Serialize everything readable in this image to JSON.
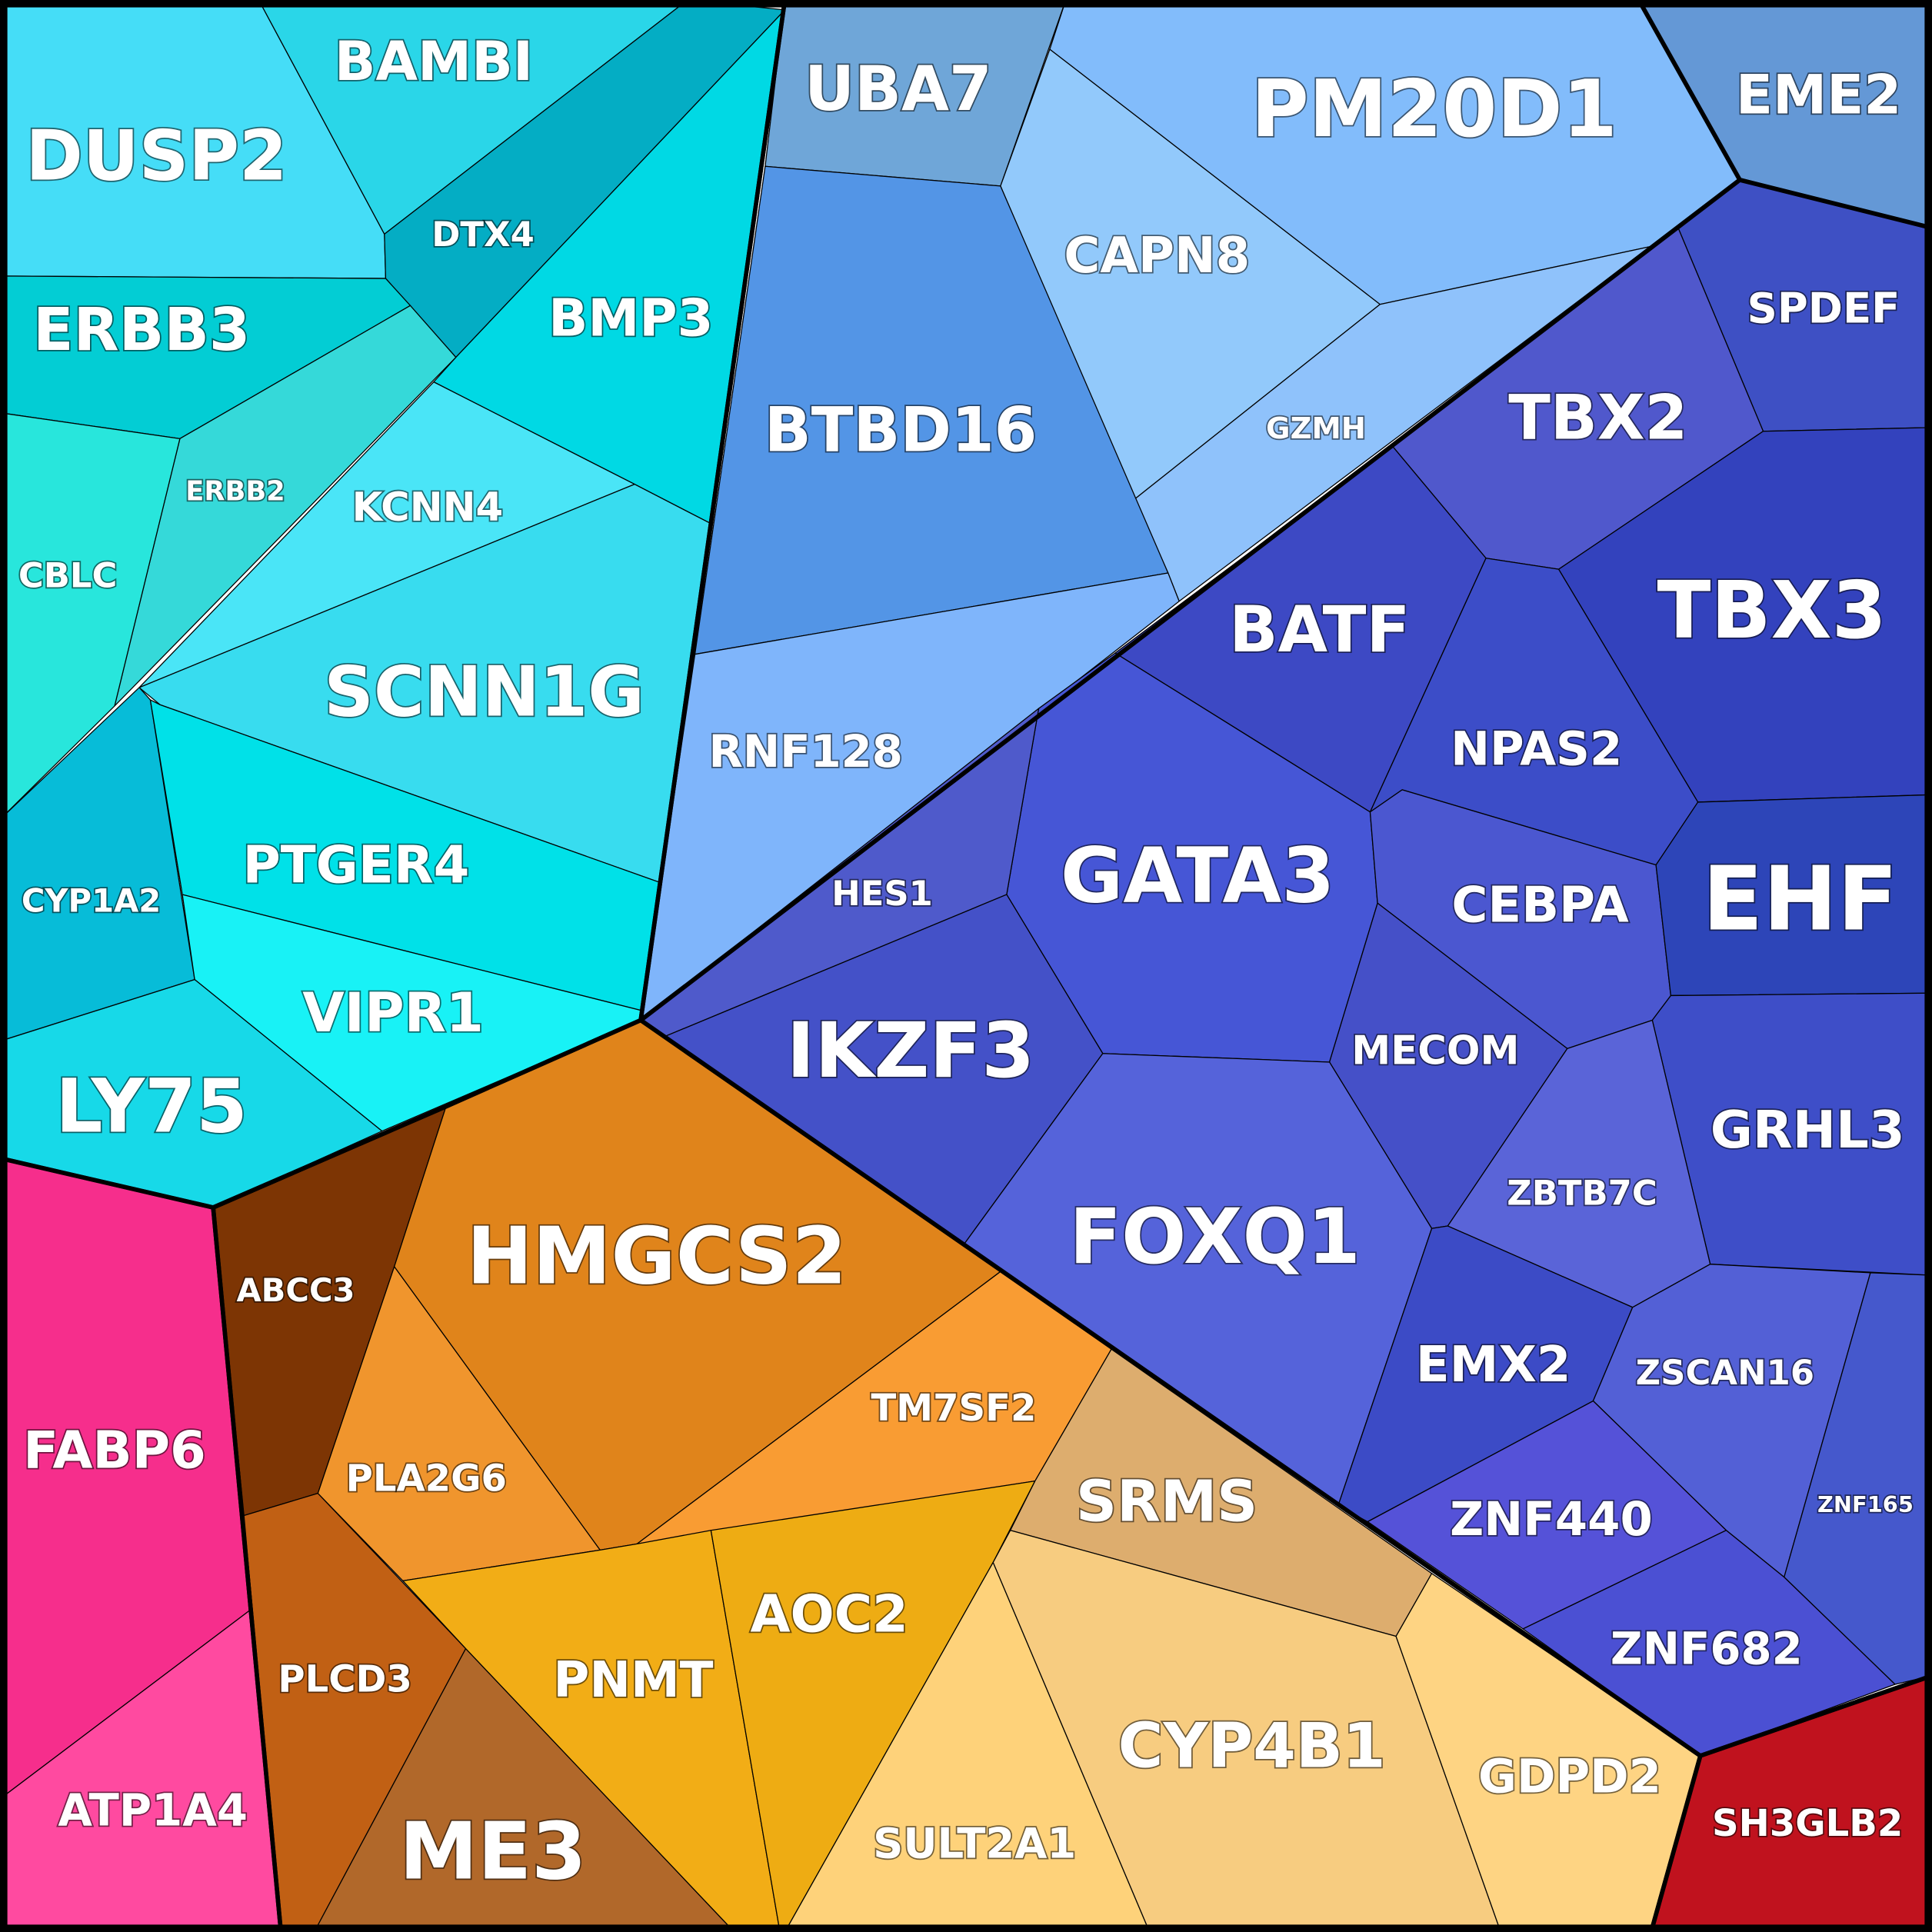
{
  "cells": [
    {
      "label": "DUSP2"
    },
    {
      "label": "BAMBI"
    },
    {
      "label": "DTX4"
    },
    {
      "label": "BMP3"
    },
    {
      "label": "ERBB3"
    },
    {
      "label": "ERBB2"
    },
    {
      "label": "CBLC"
    },
    {
      "label": "KCNN4"
    },
    {
      "label": "SCNN1G"
    },
    {
      "label": "CYP1A2"
    },
    {
      "label": "PTGER4"
    },
    {
      "label": "VIPR1"
    },
    {
      "label": "LY75"
    },
    {
      "label": "UBA7"
    },
    {
      "label": "PM20D1"
    },
    {
      "label": "CAPN8"
    },
    {
      "label": "GZMH"
    },
    {
      "label": "BTBD16"
    },
    {
      "label": "RNF128"
    },
    {
      "label": "EME2"
    },
    {
      "label": "SPDEF"
    },
    {
      "label": "TBX2"
    },
    {
      "label": "TBX3"
    },
    {
      "label": "BATF"
    },
    {
      "label": "NPAS2"
    },
    {
      "label": "GATA3"
    },
    {
      "label": "HES1"
    },
    {
      "label": "CEBPA"
    },
    {
      "label": "EHF"
    },
    {
      "label": "IKZF3"
    },
    {
      "label": "MECOM"
    },
    {
      "label": "FOXQ1"
    },
    {
      "label": "GRHL3"
    },
    {
      "label": "ZBTB7C"
    },
    {
      "label": "EMX2"
    },
    {
      "label": "ZSCAN16"
    },
    {
      "label": "ZNF165"
    },
    {
      "label": "ZNF440"
    },
    {
      "label": "ZNF682"
    },
    {
      "label": "SH3GLB2"
    },
    {
      "label": "ABCC3"
    },
    {
      "label": "HMGCS2"
    },
    {
      "label": "PLA2G6"
    },
    {
      "label": "TM7SF2"
    },
    {
      "label": "PLCD3"
    },
    {
      "label": "ME3"
    },
    {
      "label": "PNMT"
    },
    {
      "label": "AOC2"
    },
    {
      "label": "SRMS"
    },
    {
      "label": "SULT2A1"
    },
    {
      "label": "CYP4B1"
    },
    {
      "label": "GDPD2"
    },
    {
      "label": "FABP6"
    },
    {
      "label": "ATP1A4"
    }
  ]
}
